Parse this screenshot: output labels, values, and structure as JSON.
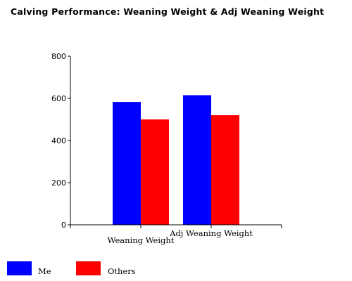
{
  "chart_data": {
    "type": "bar",
    "title": "Calving Performance: Weaning Weight & Adj Weaning Weight",
    "xlabel": "",
    "ylabel": "",
    "categories": [
      "Weaning Weight",
      "Adj Weaning Weight"
    ],
    "series": [
      {
        "name": "Me",
        "color": "#0000ff",
        "values": [
          583,
          615
        ]
      },
      {
        "name": "Others",
        "color": "#ff0000",
        "values": [
          500,
          520
        ]
      }
    ],
    "ylim": [
      0,
      800
    ],
    "yticks": [
      0,
      200,
      400,
      600,
      800
    ],
    "grid": false,
    "legend_position": "bottom-left"
  }
}
